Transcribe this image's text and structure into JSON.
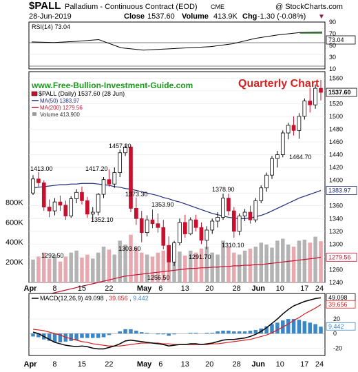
{
  "header": {
    "symbol": "$PALL",
    "name": "Palladium - Continuous Contract (EOD)",
    "exchange": "CME",
    "copyright": "@ StockCharts.com",
    "date": "28-Jun-2019",
    "close_label": "Close",
    "close_value": "1537.60",
    "volume_label": "Volume",
    "volume_value": "413.9K",
    "chg_label": "Chg",
    "chg_value": "-1.30 (-0.08%)",
    "chg_arrow": "▼"
  },
  "rsi": {
    "label": "RSI(14) 73.04",
    "value_tag": "73.04",
    "ticks": [
      "90",
      "70",
      "50",
      "30",
      "10"
    ]
  },
  "main": {
    "website": "www.Free-Bullion-Investment-Guide.com",
    "quarterly": "Quarterly Chart",
    "legend_main": "$PALL (Daily) 1537.60 (28 Jun)",
    "legend_ma50": "MA(50) 1383.97",
    "legend_ma200": "MA(200) 1279.56",
    "legend_volume": "Volume 413,900",
    "price_tag": "1537.60",
    "ma50_tag": "1383.97",
    "ma200_tag": "1279.56",
    "price_ticks": [
      "1560",
      "1540",
      "1520",
      "1500",
      "1480",
      "1460",
      "1440",
      "1420",
      "1400",
      "1380",
      "1360",
      "1340",
      "1320",
      "1300",
      "1280",
      "1260",
      "1240"
    ],
    "volume_ticks": [
      "800K",
      "600K",
      "400K",
      "200K"
    ],
    "annotations": [
      "1413.00",
      "1417.20",
      "1457.20",
      "1373.30",
      "1352.10",
      "1353.90",
      "1303.60",
      "1292.50",
      "1256.50",
      "1378.90",
      "1291.70",
      "1310.10",
      "1464.70"
    ]
  },
  "macd": {
    "label_prefix": "MACD(12,26,9)",
    "macd_value": "49.098",
    "signal_value": "39.656",
    "hist_value": "9.442",
    "tags": [
      "49.098",
      "39.656",
      "9.442"
    ],
    "ticks": [
      "20",
      "0",
      "-20"
    ]
  },
  "x_ticks": [
    "Apr",
    "8",
    "15",
    "22",
    "May",
    "6",
    "13",
    "20",
    "28",
    "Jun",
    "10",
    "17",
    "24"
  ],
  "colors": {
    "up": "#ffffff",
    "down": "#c8102e",
    "ma50": "#1f2a7a",
    "ma200": "#c8102e",
    "volume_up": "#b3b3b3",
    "volume_down": "#e8a8b0",
    "macd": "#000000",
    "signal": "#d62020",
    "histogram": "#3b86c4",
    "website": "#1a9a1a",
    "quarterly": "#d62020",
    "rsi_fill": "#2e8b2e"
  },
  "chart_data": [
    {
      "type": "line",
      "title": "RSI(14) 73.04",
      "x": [
        "Apr 1",
        "Apr 8",
        "Apr 15",
        "Apr 22",
        "May 1",
        "May 6",
        "May 13",
        "May 20",
        "May 28",
        "Jun 3",
        "Jun 10",
        "Jun 17",
        "Jun 24",
        "Jun 28"
      ],
      "series": [
        {
          "name": "RSI(14)",
          "values": [
            56,
            55,
            57,
            60,
            46,
            42,
            44,
            46,
            48,
            53,
            62,
            68,
            72,
            73.04
          ]
        }
      ],
      "ylim": [
        10,
        90
      ]
    },
    {
      "type": "candlestick",
      "title": "$PALL (Daily) 1537.60 (28 Jun)",
      "ohlc": [
        [
          1380,
          1408,
          1377,
          1402
        ],
        [
          1402,
          1413,
          1390,
          1396
        ],
        [
          1396,
          1400,
          1352,
          1358
        ],
        [
          1358,
          1370,
          1342,
          1352
        ],
        [
          1352,
          1372,
          1345,
          1366
        ],
        [
          1366,
          1376,
          1352,
          1361
        ],
        [
          1361,
          1368,
          1338,
          1344
        ],
        [
          1344,
          1375,
          1341,
          1371
        ],
        [
          1371,
          1386,
          1364,
          1381
        ],
        [
          1381,
          1390,
          1362,
          1368
        ],
        [
          1368,
          1374,
          1341,
          1347
        ],
        [
          1347,
          1358,
          1337,
          1350
        ],
        [
          1350,
          1380,
          1345,
          1378
        ],
        [
          1378,
          1405,
          1372,
          1401
        ],
        [
          1401,
          1417,
          1390,
          1394
        ],
        [
          1394,
          1420,
          1388,
          1412
        ],
        [
          1412,
          1448,
          1405,
          1443
        ],
        [
          1443,
          1457,
          1438,
          1452
        ],
        [
          1452,
          1455,
          1350,
          1356
        ],
        [
          1356,
          1373,
          1330,
          1340
        ],
        [
          1340,
          1352,
          1303,
          1318
        ],
        [
          1318,
          1345,
          1312,
          1338
        ],
        [
          1338,
          1354,
          1325,
          1332
        ],
        [
          1332,
          1348,
          1318,
          1326
        ],
        [
          1326,
          1338,
          1292,
          1298
        ],
        [
          1298,
          1312,
          1256,
          1272
        ],
        [
          1272,
          1305,
          1266,
          1302
        ],
        [
          1302,
          1340,
          1298,
          1334
        ],
        [
          1334,
          1346,
          1310,
          1316
        ],
        [
          1316,
          1342,
          1314,
          1338
        ],
        [
          1338,
          1346,
          1320,
          1326
        ],
        [
          1326,
          1334,
          1300,
          1306
        ],
        [
          1306,
          1328,
          1292,
          1322
        ],
        [
          1322,
          1340,
          1316,
          1336
        ],
        [
          1336,
          1350,
          1326,
          1342
        ],
        [
          1342,
          1379,
          1338,
          1372
        ],
        [
          1372,
          1379,
          1345,
          1352
        ],
        [
          1352,
          1358,
          1310,
          1320
        ],
        [
          1320,
          1348,
          1314,
          1344
        ],
        [
          1344,
          1355,
          1336,
          1350
        ],
        [
          1350,
          1360,
          1332,
          1338
        ],
        [
          1338,
          1372,
          1334,
          1368
        ],
        [
          1368,
          1392,
          1364,
          1388
        ],
        [
          1388,
          1412,
          1382,
          1408
        ],
        [
          1408,
          1438,
          1402,
          1434
        ],
        [
          1434,
          1446,
          1420,
          1440
        ],
        [
          1440,
          1478,
          1436,
          1474
        ],
        [
          1474,
          1490,
          1464,
          1486
        ],
        [
          1486,
          1500,
          1470,
          1478
        ],
        [
          1478,
          1505,
          1465,
          1500
        ],
        [
          1500,
          1528,
          1495,
          1524
        ],
        [
          1524,
          1545,
          1506,
          1518
        ],
        [
          1518,
          1550,
          1512,
          1544
        ],
        [
          1544,
          1557,
          1525,
          1537.6
        ]
      ],
      "ma50": [
        1388,
        1389,
        1390,
        1391,
        1392,
        1393,
        1393,
        1394,
        1394,
        1395,
        1395,
        1395,
        1394,
        1393,
        1392,
        1390,
        1389,
        1387,
        1386,
        1384,
        1382,
        1380,
        1378,
        1376,
        1373,
        1371,
        1368,
        1366,
        1363,
        1360,
        1357,
        1354,
        1351,
        1348,
        1346,
        1344,
        1342,
        1341,
        1340,
        1340,
        1341,
        1343,
        1345,
        1348,
        1352,
        1356,
        1360,
        1364,
        1368,
        1372,
        1375,
        1378,
        1381,
        1383.97
      ],
      "ma200": [
        1216,
        1218,
        1220,
        1222,
        1224,
        1226,
        1228,
        1230,
        1232,
        1234,
        1236,
        1238,
        1240,
        1242,
        1244,
        1246,
        1248,
        1250,
        1251,
        1252,
        1253,
        1254,
        1255,
        1256,
        1257,
        1258,
        1259,
        1260,
        1261,
        1262,
        1262,
        1263,
        1263,
        1264,
        1264,
        1265,
        1265,
        1266,
        1266,
        1267,
        1267,
        1268,
        1268,
        1269,
        1270,
        1271,
        1272,
        1273,
        1274,
        1275,
        1276,
        1277,
        1278,
        1279.56
      ],
      "volume": [
        230,
        260,
        300,
        240,
        280,
        210,
        260,
        300,
        320,
        250,
        280,
        240,
        300,
        360,
        330,
        280,
        420,
        380,
        480,
        360,
        300,
        280,
        260,
        300,
        320,
        290,
        300,
        310,
        270,
        320,
        300,
        340,
        360,
        300,
        280,
        420,
        360,
        300,
        280,
        320,
        340,
        360,
        400,
        380,
        350,
        420,
        440,
        380,
        360,
        420,
        430,
        400,
        460,
        414
      ],
      "ylim": [
        1240,
        1570
      ],
      "volume_ylim": [
        0,
        900000
      ]
    },
    {
      "type": "line",
      "title": "MACD(12,26,9) 49.098, 39.656, 9.442",
      "series": [
        {
          "name": "MACD",
          "values": [
            2,
            0,
            -4,
            -8,
            -12,
            -14,
            -16,
            -17,
            -18,
            -17,
            -18,
            -20,
            -21,
            -21,
            -19,
            -17,
            -14,
            -10,
            -9,
            -10,
            -11,
            -12,
            -13,
            -14,
            -15,
            -17,
            -16,
            -15,
            -15,
            -14,
            -14,
            -15,
            -14,
            -13,
            -11,
            -9,
            -8,
            -8,
            -7,
            -6,
            -4,
            -1,
            3,
            8,
            14,
            20,
            27,
            33,
            38,
            41,
            44,
            46,
            48,
            49.098
          ]
        },
        {
          "name": "Signal",
          "values": [
            6,
            5,
            4,
            2,
            0,
            -2,
            -5,
            -7,
            -9,
            -11,
            -12,
            -14,
            -15,
            -16,
            -17,
            -17,
            -17,
            -16,
            -15,
            -14,
            -13,
            -13,
            -13,
            -13,
            -14,
            -14,
            -15,
            -15,
            -15,
            -15,
            -15,
            -15,
            -15,
            -14,
            -14,
            -13,
            -12,
            -11,
            -10,
            -9,
            -8,
            -6,
            -4,
            -2,
            1,
            5,
            9,
            13,
            18,
            22,
            27,
            31,
            35,
            39.656
          ]
        },
        {
          "name": "Histogram",
          "values": [
            -4,
            -5,
            -8,
            -10,
            -12,
            -12,
            -11,
            -10,
            -9,
            -6,
            -6,
            -6,
            -6,
            -5,
            -2,
            0,
            3,
            6,
            6,
            4,
            2,
            1,
            0,
            -1,
            -1,
            -3,
            -1,
            0,
            0,
            1,
            1,
            0,
            1,
            1,
            3,
            4,
            4,
            3,
            3,
            3,
            4,
            5,
            7,
            10,
            13,
            15,
            18,
            20,
            20,
            19,
            17,
            15,
            13,
            9.442
          ]
        }
      ],
      "ylim": [
        -30,
        55
      ]
    }
  ]
}
